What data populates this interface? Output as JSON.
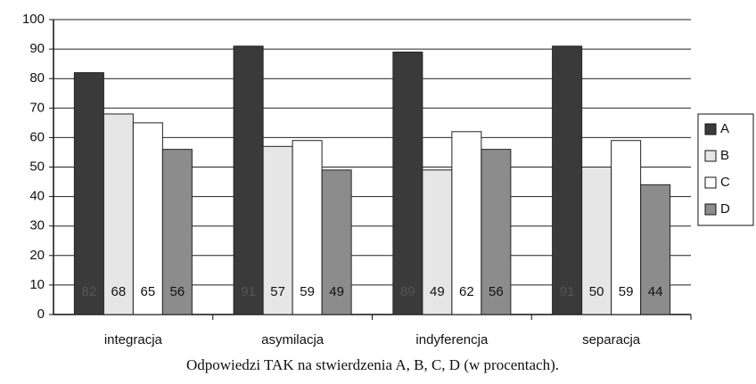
{
  "chart_data": {
    "type": "bar",
    "title": "Odpowiedzi TAK na stwierdzenia A, B, C, D (w procentach).",
    "categories": [
      "integracja",
      "asymilacja",
      "indyferencja",
      "separacja"
    ],
    "series": [
      {
        "name": "A",
        "color": "#3a3a3a",
        "values": [
          82,
          91,
          89,
          91
        ]
      },
      {
        "name": "B",
        "color": "#e6e6e6",
        "values": [
          68,
          57,
          49,
          50
        ]
      },
      {
        "name": "C",
        "color": "#ffffff",
        "values": [
          65,
          59,
          62,
          59
        ]
      },
      {
        "name": "D",
        "color": "#8c8c8c",
        "values": [
          56,
          49,
          56,
          44
        ]
      }
    ],
    "ylim": [
      0,
      100
    ],
    "yticks": [
      0,
      10,
      20,
      30,
      40,
      50,
      60,
      70,
      80,
      90,
      100
    ],
    "grid": true,
    "legend": "right"
  }
}
